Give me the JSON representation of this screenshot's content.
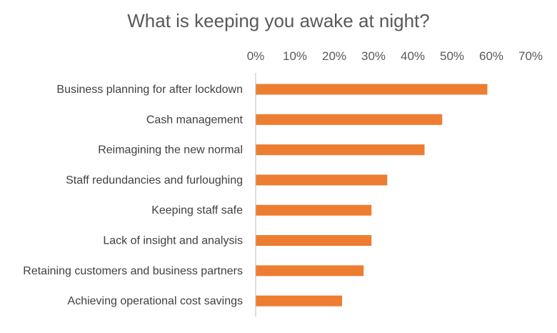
{
  "chart_data": {
    "type": "bar",
    "orientation": "horizontal",
    "title": "What is keeping you awake at night?",
    "xlabel": "",
    "ylabel": "",
    "xlim": [
      0,
      0.7
    ],
    "x_ticks": [
      "0%",
      "10%",
      "20%",
      "30%",
      "40%",
      "50%",
      "60%",
      "70%"
    ],
    "x_axis_position": "top",
    "grid": false,
    "bar_color": "#ED7D31",
    "categories": [
      "Business planning for after lockdown",
      "Cash management",
      "Reimagining the new normal",
      "Staff redundancies and furloughing",
      "Keeping staff safe",
      "Lack of insight and analysis",
      "Retaining customers and business partners",
      "Achieving operational cost savings"
    ],
    "values": [
      0.59,
      0.475,
      0.43,
      0.335,
      0.295,
      0.295,
      0.275,
      0.22
    ]
  }
}
